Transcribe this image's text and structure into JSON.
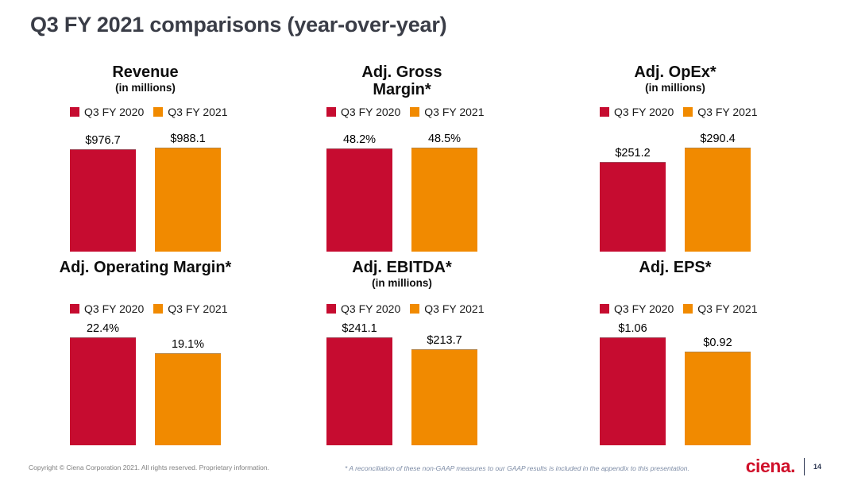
{
  "slide": {
    "title": "Q3 FY 2021 comparisons (year-over-year)"
  },
  "legend": {
    "position": "top",
    "series": [
      {
        "label": "Q3 FY 2020",
        "color": "#c60c30"
      },
      {
        "label": "Q3 FY 2021",
        "color": "#f18a00"
      }
    ]
  },
  "chart_data": [
    {
      "type": "bar",
      "title": "Revenue",
      "title_lines": [
        "Revenue"
      ],
      "subtitle": "(in millions)",
      "categories": [
        "Q3 FY 2020",
        "Q3 FY 2021"
      ],
      "values": [
        976.7,
        988.1
      ],
      "labels": [
        "$976.7",
        "$988.1"
      ],
      "axes_hidden": true
    },
    {
      "type": "bar",
      "title": "Adj. Gross Margin*",
      "title_lines": [
        "Adj. Gross",
        "Margin*"
      ],
      "subtitle": "",
      "categories": [
        "Q3 FY 2020",
        "Q3 FY 2021"
      ],
      "values": [
        48.2,
        48.5
      ],
      "labels": [
        "48.2%",
        "48.5%"
      ],
      "axes_hidden": true
    },
    {
      "type": "bar",
      "title": "Adj. OpEx*",
      "title_lines": [
        "Adj. OpEx*"
      ],
      "subtitle": "(in millions)",
      "categories": [
        "Q3 FY 2020",
        "Q3 FY 2021"
      ],
      "values": [
        251.2,
        290.4
      ],
      "labels": [
        "$251.2",
        "$290.4"
      ],
      "axes_hidden": true
    },
    {
      "type": "bar",
      "title": "Adj. Operating Margin*",
      "title_lines": [
        "Adj. Operating Margin*"
      ],
      "subtitle": "",
      "categories": [
        "Q3 FY 2020",
        "Q3 FY 2021"
      ],
      "values": [
        22.4,
        19.1
      ],
      "labels": [
        "22.4%",
        "19.1%"
      ],
      "axes_hidden": true
    },
    {
      "type": "bar",
      "title": "Adj. EBITDA*",
      "title_lines": [
        "Adj. EBITDA*"
      ],
      "subtitle": "(in millions)",
      "categories": [
        "Q3 FY 2020",
        "Q3 FY 2021"
      ],
      "values": [
        241.1,
        213.7
      ],
      "labels": [
        "$241.1",
        "$213.7"
      ],
      "axes_hidden": true
    },
    {
      "type": "bar",
      "title": "Adj. EPS*",
      "title_lines": [
        "Adj. EPS*"
      ],
      "subtitle": "",
      "categories": [
        "Q3 FY 2020",
        "Q3 FY 2021"
      ],
      "values": [
        1.06,
        0.92
      ],
      "labels": [
        "$1.06",
        "$0.92"
      ],
      "axes_hidden": true
    }
  ],
  "footer": {
    "copyright": "Copyright © Ciena Corporation 2021. All rights reserved. Proprietary information.",
    "footnote": "* A reconciliation of these non-GAAP measures to our GAAP results is included in the appendix to this presentation.",
    "logo_text": "ciena.",
    "page_number": "14"
  }
}
